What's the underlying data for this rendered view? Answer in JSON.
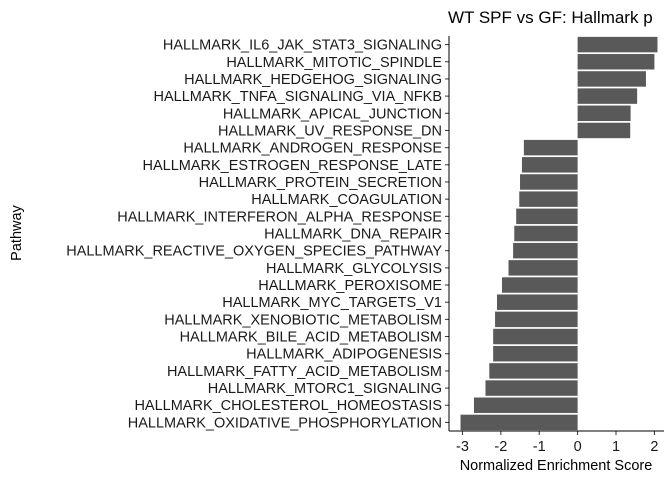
{
  "chart_data": {
    "type": "bar",
    "orientation": "horizontal",
    "title": "WT SPF vs GF: Hallmark p",
    "xlabel": "Normalized Enrichment Score",
    "ylabel": "Pathway",
    "xlim": [
      -3.35,
      2.25
    ],
    "x_ticks": [
      -3,
      -2,
      -1,
      0,
      1,
      2
    ],
    "x_tick_labels": [
      "-3",
      "-2",
      "-1",
      "0",
      "1",
      "2"
    ],
    "grid": false,
    "bar_color": "#595959",
    "categories": [
      "HALLMARK_IL6_JAK_STAT3_SIGNALING",
      "HALLMARK_MITOTIC_SPINDLE",
      "HALLMARK_HEDGEHOG_SIGNALING",
      "HALLMARK_TNFA_SIGNALING_VIA_NFKB",
      "HALLMARK_APICAL_JUNCTION",
      "HALLMARK_UV_RESPONSE_DN",
      "HALLMARK_ANDROGEN_RESPONSE",
      "HALLMARK_ESTROGEN_RESPONSE_LATE",
      "HALLMARK_PROTEIN_SECRETION",
      "HALLMARK_COAGULATION",
      "HALLMARK_INTERFERON_ALPHA_RESPONSE",
      "HALLMARK_DNA_REPAIR",
      "HALLMARK_REACTIVE_OXYGEN_SPECIES_PATHWAY",
      "HALLMARK_GLYCOLYSIS",
      "HALLMARK_PEROXISOME",
      "HALLMARK_MYC_TARGETS_V1",
      "HALLMARK_XENOBIOTIC_METABOLISM",
      "HALLMARK_BILE_ACID_METABOLISM",
      "HALLMARK_ADIPOGENESIS",
      "HALLMARK_FATTY_ACID_METABOLISM",
      "HALLMARK_MTORC1_SIGNALING",
      "HALLMARK_CHOLESTEROL_HOMEOSTASIS",
      "HALLMARK_OXIDATIVE_PHOSPHORYLATION"
    ],
    "values": [
      2.08,
      2.0,
      1.78,
      1.55,
      1.38,
      1.37,
      -1.4,
      -1.45,
      -1.5,
      -1.52,
      -1.6,
      -1.65,
      -1.68,
      -1.8,
      -1.97,
      -2.1,
      -2.15,
      -2.2,
      -2.2,
      -2.3,
      -2.4,
      -2.7,
      -3.05
    ]
  }
}
